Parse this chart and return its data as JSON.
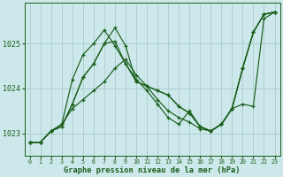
{
  "xlabel": "Graphe pression niveau de la mer (hPa)",
  "bg_color": "#cce8ea",
  "grid_color": "#aacccc",
  "line_color": "#1a5e1a",
  "ylim": [
    1022.5,
    1025.9
  ],
  "xlim": [
    -0.5,
    23.5
  ],
  "yticks": [
    1023,
    1024,
    1025
  ],
  "xticks": [
    0,
    1,
    2,
    3,
    4,
    5,
    6,
    7,
    8,
    9,
    10,
    11,
    12,
    13,
    14,
    15,
    16,
    17,
    18,
    19,
    20,
    21,
    22,
    23
  ],
  "series": [
    [
      1022.8,
      1022.8,
      1023.05,
      1023.15,
      1023.65,
      1024.25,
      1024.55,
      1025.0,
      1025.35,
      1024.95,
      1024.15,
      1024.05,
      1023.95,
      1023.85,
      1023.6,
      1023.45,
      1023.15,
      1023.05,
      1023.2,
      1023.55,
      1024.45,
      1025.25,
      1025.65,
      1025.7
    ],
    [
      1022.8,
      1022.8,
      1023.05,
      1023.15,
      1023.65,
      1024.25,
      1024.55,
      1025.0,
      1025.05,
      1024.55,
      1024.15,
      1024.05,
      1023.95,
      1023.85,
      1023.6,
      1023.45,
      1023.15,
      1023.05,
      1023.2,
      1023.55,
      1024.45,
      1025.25,
      1025.65,
      1025.7
    ],
    [
      1022.8,
      1022.8,
      1023.05,
      1023.2,
      1024.2,
      1024.75,
      1025.0,
      1025.3,
      1024.95,
      1024.55,
      1024.2,
      1023.95,
      1023.65,
      1023.35,
      1023.2,
      1023.5,
      1023.15,
      1023.05,
      1023.2,
      1023.55,
      1024.45,
      1025.25,
      1025.65,
      1025.7
    ],
    [
      1022.8,
      1022.8,
      1023.05,
      1023.2,
      1023.55,
      1023.75,
      1023.95,
      1024.15,
      1024.45,
      1024.65,
      1024.3,
      1024.05,
      1023.75,
      1023.5,
      1023.35,
      1023.25,
      1023.1,
      1023.05,
      1023.2,
      1023.55,
      1023.65,
      1023.6,
      1025.55,
      1025.7
    ]
  ]
}
